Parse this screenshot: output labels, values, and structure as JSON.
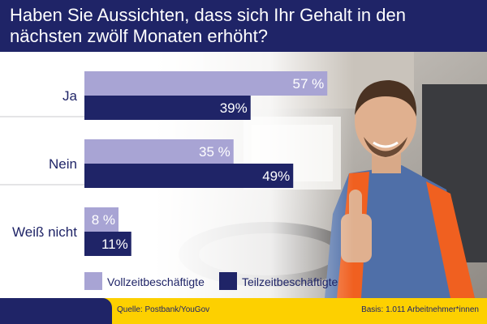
{
  "chart_data": {
    "type": "bar",
    "orientation": "horizontal",
    "title": "Haben Sie Aussichten, dass sich Ihr Gehalt in den nächsten zwölf Monaten erhöht?",
    "categories": [
      "Ja",
      "Nein",
      "Weiß nicht"
    ],
    "series": [
      {
        "name": "Vollzeitbeschäftigte",
        "values": [
          57,
          35,
          8
        ],
        "labels": [
          "57 %",
          "35 %",
          "8 %"
        ],
        "color": "#a8a4d4",
        "label_color": "#ffffff"
      },
      {
        "name": "Teilzeitbeschäftigte",
        "values": [
          39,
          49,
          11
        ],
        "labels": [
          "39%",
          "49%",
          "11%"
        ],
        "color": "#1f2467",
        "label_color": "#ffffff"
      }
    ],
    "xlim": [
      0,
      100
    ],
    "legend_position": "bottom",
    "grid": false
  },
  "footer": {
    "source": "Quelle: Postbank/YouGov",
    "basis": "Basis: 1.011 Arbeitnehmer*innen"
  },
  "colors": {
    "navy": "#1f2467",
    "lavender": "#a8a4d4",
    "yellow": "#fdd000"
  },
  "photo": "truck-driver-thumbs-up"
}
